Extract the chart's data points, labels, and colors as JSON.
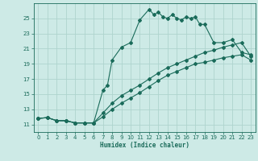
{
  "xlabel": "Humidex (Indice chaleur)",
  "bg_color": "#cdeae6",
  "line_color": "#1a6b5a",
  "grid_color": "#aed4ce",
  "xlim": [
    -0.5,
    23.5
  ],
  "ylim": [
    10.0,
    27.0
  ],
  "xticks": [
    0,
    1,
    2,
    3,
    4,
    5,
    6,
    7,
    8,
    9,
    10,
    11,
    12,
    13,
    14,
    15,
    16,
    17,
    18,
    19,
    20,
    21,
    22,
    23
  ],
  "yticks": [
    11,
    13,
    15,
    17,
    19,
    21,
    23,
    25
  ],
  "curve1_x": [
    0,
    1,
    2,
    3,
    4,
    5,
    6,
    7,
    7.5,
    8,
    9,
    10,
    11,
    12,
    12.5,
    13,
    13.5,
    14,
    14.5,
    15,
    15.5,
    16,
    16.5,
    17,
    17.5,
    18,
    19,
    20,
    21,
    22,
    23
  ],
  "curve1_y": [
    11.8,
    11.9,
    11.5,
    11.5,
    11.2,
    11.2,
    11.2,
    15.5,
    16.2,
    19.5,
    21.2,
    21.8,
    24.8,
    26.2,
    25.5,
    25.8,
    25.2,
    25.0,
    25.5,
    25.0,
    24.8,
    25.2,
    25.0,
    25.2,
    24.2,
    24.2,
    21.8,
    21.8,
    22.2,
    20.5,
    20.2
  ],
  "curve2_x": [
    0,
    1,
    2,
    3,
    4,
    5,
    6,
    7,
    8,
    9,
    10,
    11,
    12,
    13,
    14,
    15,
    16,
    17,
    18,
    19,
    20,
    21,
    22,
    23
  ],
  "curve2_y": [
    11.8,
    11.9,
    11.5,
    11.5,
    11.2,
    11.2,
    11.2,
    12.5,
    13.8,
    14.8,
    15.5,
    16.2,
    17.0,
    17.8,
    18.5,
    19.0,
    19.5,
    20.0,
    20.5,
    20.8,
    21.2,
    21.5,
    21.8,
    20.0
  ],
  "curve3_x": [
    0,
    1,
    2,
    3,
    4,
    5,
    6,
    7,
    8,
    9,
    10,
    11,
    12,
    13,
    14,
    15,
    16,
    17,
    18,
    19,
    20,
    21,
    22,
    23
  ],
  "curve3_y": [
    11.8,
    11.9,
    11.5,
    11.5,
    11.2,
    11.2,
    11.2,
    12.0,
    13.0,
    13.8,
    14.5,
    15.2,
    16.0,
    16.8,
    17.5,
    18.0,
    18.5,
    19.0,
    19.2,
    19.5,
    19.8,
    20.0,
    20.2,
    19.5
  ]
}
